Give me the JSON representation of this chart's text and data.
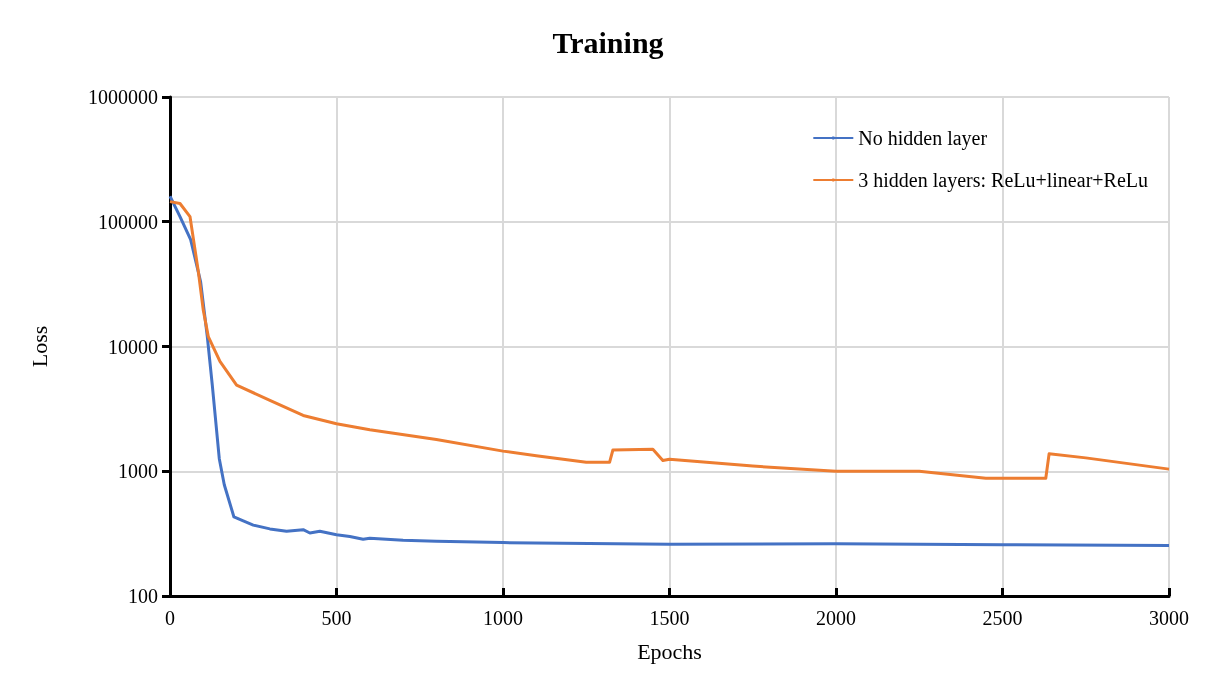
{
  "chart_data": {
    "type": "line",
    "title": "Training",
    "xlabel": "Epochs",
    "ylabel": "Loss",
    "log": "y",
    "grid": true,
    "legend": "top right",
    "marker": "none",
    "line_style": "solid",
    "xlim": [
      0,
      3000
    ],
    "xticks": [
      0,
      500,
      1000,
      1500,
      2000,
      2500,
      3000
    ],
    "ylim": [
      100,
      1000000
    ],
    "yticks": [
      100,
      1000,
      10000,
      100000,
      1000000
    ],
    "series": [
      {
        "name": "No hidden layer",
        "color": "#4472c4",
        "x": [
          0,
          30,
          62,
          92,
          112,
          127,
          148,
          163,
          192,
          220,
          250,
          300,
          350,
          400,
          420,
          450,
          500,
          540,
          580,
          600,
          650,
          700,
          800,
          1000,
          1500,
          2000,
          2500,
          3000
        ],
        "values": [
          160000,
          110000,
          72000,
          33000,
          12000,
          4900,
          1260,
          780,
          430,
          400,
          370,
          345,
          330,
          340,
          320,
          330,
          310,
          300,
          285,
          290,
          285,
          280,
          275,
          268,
          260,
          262,
          258,
          254
        ]
      },
      {
        "name": "3 hidden layers: ReLu+linear+ReLu",
        "color": "#ed7d31",
        "x": [
          0,
          30,
          60,
          85,
          100,
          115,
          150,
          200,
          300,
          400,
          500,
          600,
          800,
          1000,
          1100,
          1250,
          1320,
          1330,
          1450,
          1480,
          1500,
          1750,
          2000,
          2250,
          2450,
          2630,
          2640,
          2750,
          3000
        ],
        "values": [
          145000,
          140000,
          110000,
          40000,
          19500,
          12000,
          7600,
          4900,
          3700,
          2800,
          2400,
          2150,
          1800,
          1450,
          1330,
          1180,
          1180,
          1480,
          1500,
          1220,
          1250,
          1100,
          1000,
          1000,
          880,
          880,
          1380,
          1280,
          1040
        ]
      }
    ]
  }
}
